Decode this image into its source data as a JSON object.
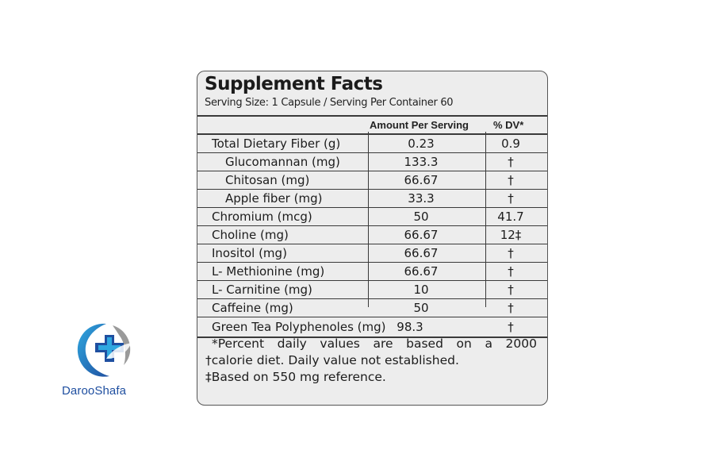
{
  "panel": {
    "title": "Supplement Facts",
    "serving": "Serving Size: 1 Capsule / Serving Per Container 60",
    "header": {
      "amount": "Amount Per Serving",
      "dv": "% DV*"
    },
    "rows": [
      {
        "name": "Total Dietary Fiber (g)",
        "amount": "0.23",
        "dv": "0.9"
      },
      {
        "name": "Glucomannan (mg)",
        "amount": "133.3",
        "dv": "†"
      },
      {
        "name": "Chitosan (mg)",
        "amount": "66.67",
        "dv": "†"
      },
      {
        "name": "Apple fiber (mg)",
        "amount": "33.3",
        "dv": "†"
      },
      {
        "name": "Chromium (mcg)",
        "amount": "50",
        "dv": "41.7"
      },
      {
        "name": "Choline (mg)",
        "amount": "66.67",
        "dv": "12‡"
      },
      {
        "name": "Inositol (mg)",
        "amount": "66.67",
        "dv": "†"
      },
      {
        "name": "L- Methionine (mg)",
        "amount": "66.67",
        "dv": "†"
      },
      {
        "name": "L- Carnitine (mg)",
        "amount": "10",
        "dv": "†"
      },
      {
        "name": "Caffeine (mg)",
        "amount": "50",
        "dv": "†"
      },
      {
        "name": "Green Tea Polyphenoles (mg)",
        "amount": "98.3",
        "dv": "†"
      }
    ],
    "footnotes": {
      "line1": "*Percent daily values are based on a 2000",
      "line2": "†calorie diet. Daily value not established.",
      "line3": "‡Based on 550 mg reference."
    }
  },
  "logo": {
    "brand": "DarooShafa",
    "icon": "medical-cross-leaf-icon",
    "colors": {
      "blue": "#1f4fa0",
      "light_blue": "#2fa8e0",
      "gray": "#9a9a9a"
    }
  }
}
